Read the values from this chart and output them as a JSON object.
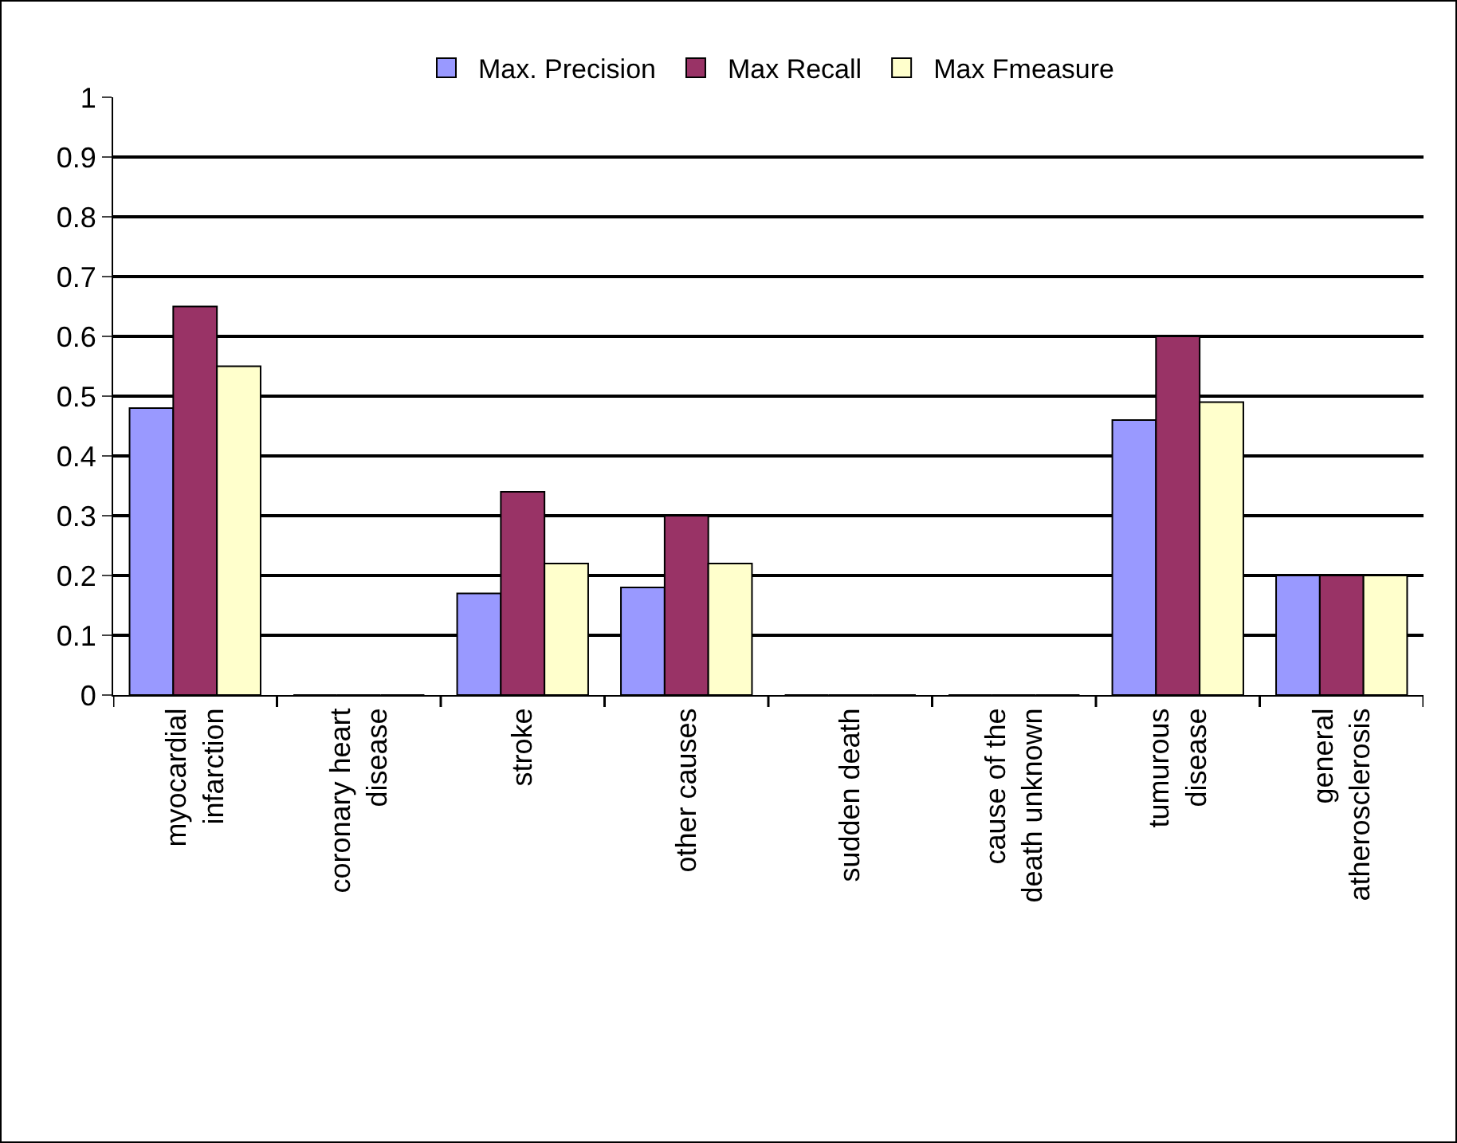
{
  "chart_data": {
    "type": "bar",
    "categories": [
      "myocardial infarction",
      "coronary heart disease",
      "stroke",
      "other causes",
      "sudden death",
      "cause of the death unknown",
      "tumurous disease",
      "general atherosclerosis"
    ],
    "series": [
      {
        "name": "Max. Precision",
        "color": "#9999ff",
        "values": [
          0.48,
          0,
          0.17,
          0.18,
          0,
          0,
          0.46,
          0.2
        ]
      },
      {
        "name": "Max Recall",
        "color": "#993366",
        "values": [
          0.65,
          0,
          0.34,
          0.3,
          0,
          0,
          0.6,
          0.2
        ]
      },
      {
        "name": "Max Fmeasure",
        "color": "#ffffcc",
        "values": [
          0.55,
          0,
          0.22,
          0.22,
          0,
          0,
          0.49,
          0.2
        ]
      }
    ],
    "ylim": [
      0,
      1
    ],
    "yticks": [
      0,
      0.1,
      0.2,
      0.3,
      0.4,
      0.5,
      0.6,
      0.7,
      0.8,
      0.9,
      1
    ],
    "grid": "y",
    "legend": "top"
  }
}
